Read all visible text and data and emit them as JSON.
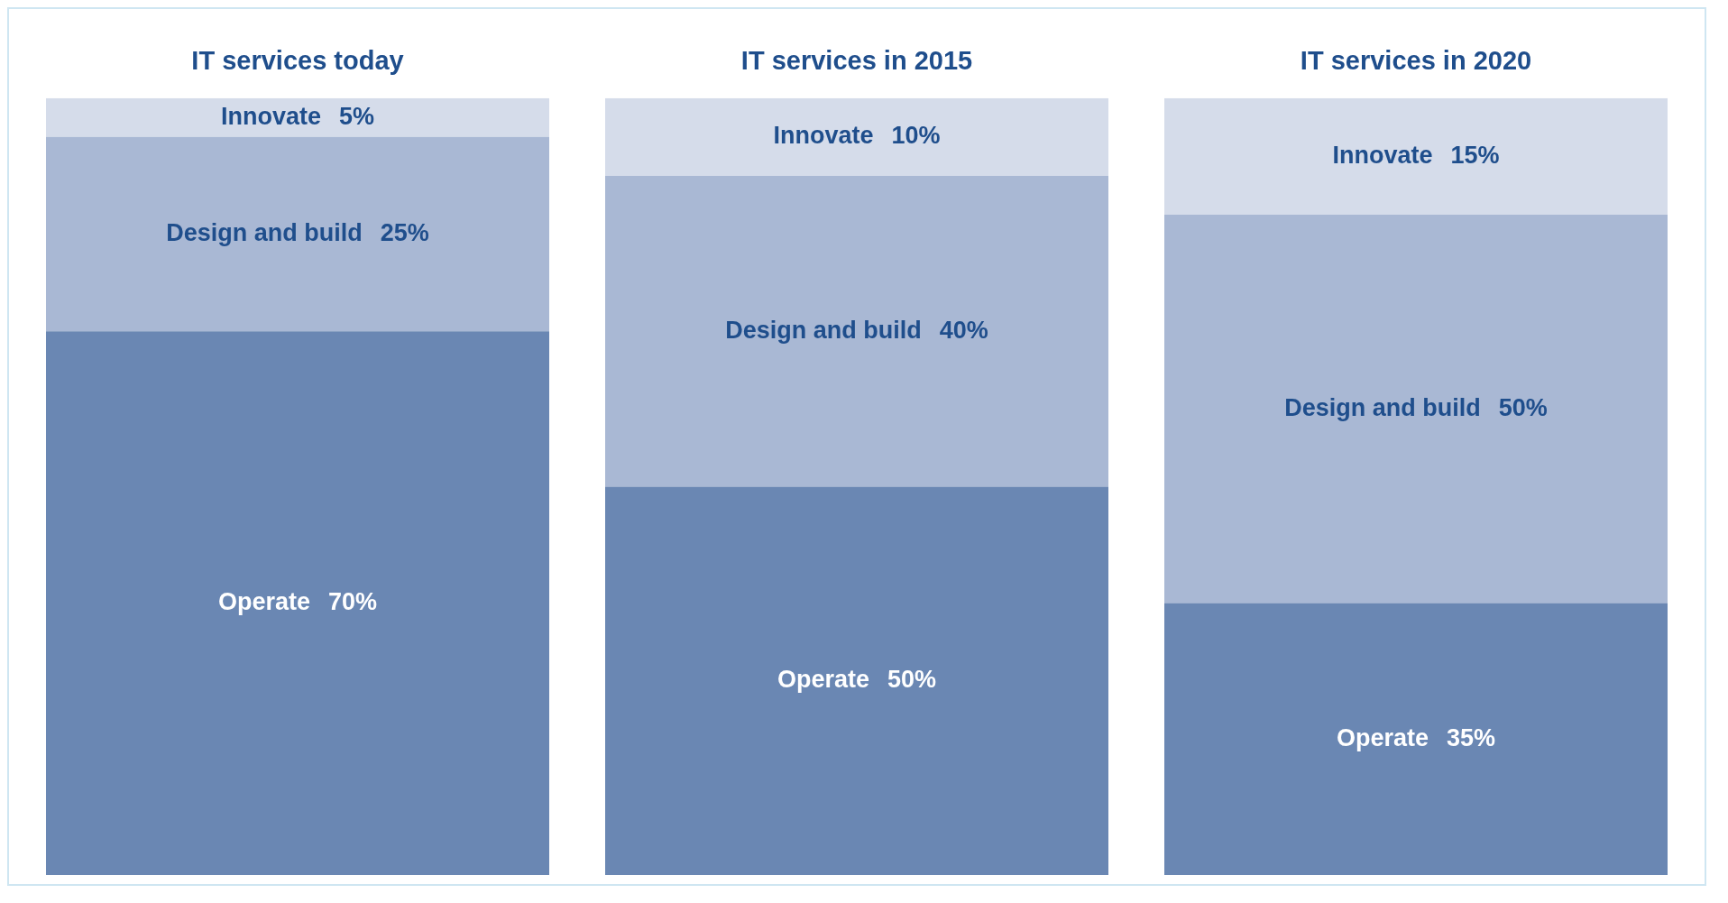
{
  "chart_data": {
    "type": "bar",
    "stacked": true,
    "categories": [
      "IT services today",
      "IT services in 2015",
      "IT services in 2020"
    ],
    "series": [
      {
        "name": "Operate",
        "color": "#6a87b3",
        "values": [
          70,
          50,
          35
        ],
        "value_labels": [
          "70%",
          "50%",
          "35%"
        ]
      },
      {
        "name": "Design and build",
        "color": "#a9b8d4",
        "values": [
          25,
          40,
          50
        ],
        "value_labels": [
          "25%",
          "40%",
          "50%"
        ]
      },
      {
        "name": "Innovate",
        "color": "#d5dcea",
        "values": [
          5,
          10,
          15
        ],
        "value_labels": [
          "5%",
          "10%",
          "15%"
        ]
      }
    ],
    "tick_labels": "x",
    "grid": false,
    "legend": false
  }
}
